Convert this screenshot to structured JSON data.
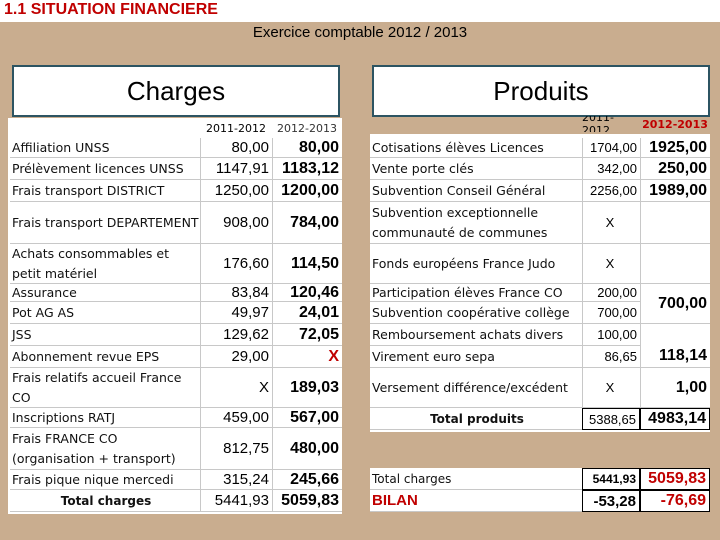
{
  "header": {
    "title": "1.1 SITUATION FINANCIERE",
    "subtitle": "Exercice comptable 2012 / 2013"
  },
  "charges": {
    "title": "Charges",
    "columns": [
      "2011-2012",
      "2012-2013"
    ],
    "rows": [
      {
        "label": "Affiliation UNSS",
        "a": "80,00",
        "b": "80,00"
      },
      {
        "label": "Prélèvement licences UNSS",
        "a": "1147,91",
        "b": "1183,12"
      },
      {
        "label": "Frais transport DISTRICT",
        "a": "1250,00",
        "b": "1200,00"
      },
      {
        "label": "Frais transport DEPARTEMENT",
        "a": "908,00",
        "b": "784,00"
      },
      {
        "label": "Achats consommables et petit matériel",
        "a": "176,60",
        "b": "114,50"
      },
      {
        "label": "Assurance",
        "a": "83,84",
        "b": "120,46"
      },
      {
        "label": "Pot AG AS",
        "a": "49,97",
        "b": "24,01"
      },
      {
        "label": "JSS",
        "a": "129,62",
        "b": "72,05"
      },
      {
        "label": "Abonnement revue EPS",
        "a": "29,00",
        "b": "X"
      },
      {
        "label": "Frais relatifs accueil France CO",
        "a": "X",
        "b": "189,03"
      },
      {
        "label": "Inscriptions RATJ",
        "a": "459,00",
        "b": "567,00"
      },
      {
        "label": "Frais FRANCE CO (organisation + transport)",
        "a": "812,75",
        "b": "480,00"
      },
      {
        "label": "Frais pique nique mercedi",
        "a": "315,24",
        "b": "245,66"
      },
      {
        "label": "Total charges",
        "a": "5441,93",
        "b": "5059,83"
      }
    ]
  },
  "produits": {
    "title": "Produits",
    "columns": [
      "2011-2012",
      "2012-2013"
    ],
    "rows": [
      {
        "label": "Cotisations élèves Licences",
        "a": "1704,00",
        "b": "1925,00"
      },
      {
        "label": "Vente porte clés",
        "a": "342,00",
        "b": "250,00"
      },
      {
        "label": "Subvention Conseil Général",
        "a": "2256,00",
        "b": "1989,00"
      },
      {
        "label": "Subvention exceptionnelle communauté de communes",
        "a": "X"
      },
      {
        "label": "Fonds européens France Judo",
        "a": "X"
      },
      {
        "label": "Participation élèves France CO",
        "a": "200,00",
        "b": "700,00"
      },
      {
        "label": "Subvention coopérative collège",
        "a": "700,00"
      },
      {
        "label": "Remboursement achats divers",
        "a": "100,00",
        "b": "118,14"
      },
      {
        "label": "Virement euro sepa",
        "a": "86,65"
      },
      {
        "label": "Versement différence/excédent",
        "a": "X",
        "b": "1,00"
      },
      {
        "label": "Total produits",
        "a": "5388,65",
        "b": "4983,14"
      }
    ]
  },
  "bilan": {
    "rows": [
      {
        "label": "Total charges",
        "a": "5441,93",
        "b": "5059,83"
      },
      {
        "label": "BILAN",
        "a": "-53,28",
        "b": "-76,69"
      }
    ]
  }
}
